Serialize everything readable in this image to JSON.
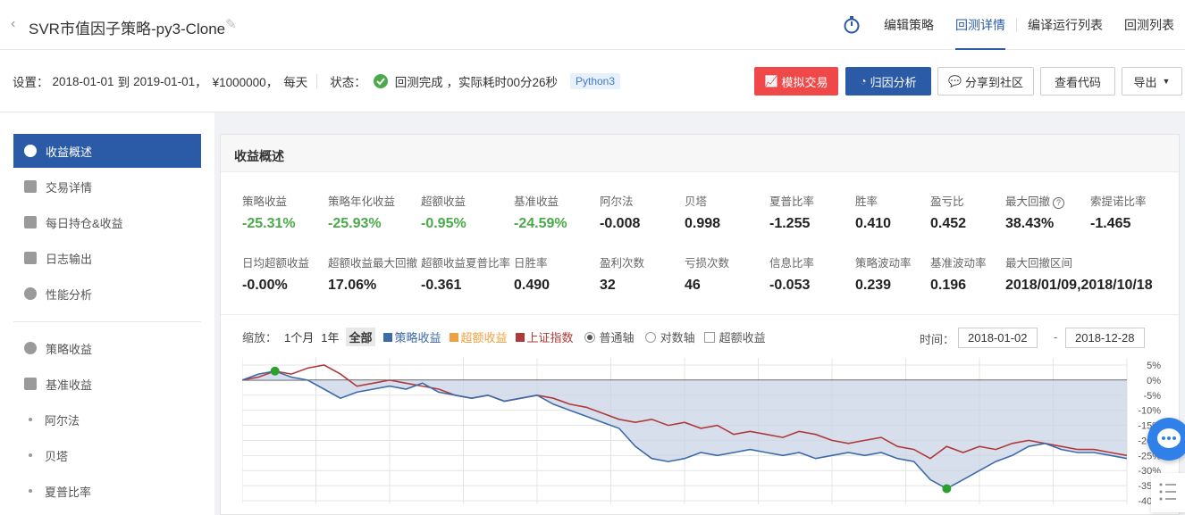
{
  "header": {
    "back_icon": "chevron-left-icon",
    "title": "SVR市值因子策略-py3-Clone",
    "nav": [
      "编辑策略",
      "回测详情",
      "编译运行列表",
      "回测列表"
    ],
    "active_nav": "回测详情"
  },
  "settings": {
    "prefix": "设置：",
    "start": "2018-01-01",
    "to": "到",
    "end": "2019-01-01",
    "capital": "¥1000000，",
    "freq": "每天",
    "status_label": "状态：",
    "status_text": "回测完成 ，实际耗时00分26秒",
    "lang": "Python3",
    "buttons": {
      "sim": "模拟交易",
      "attr": "归因分析",
      "share": "分享到社区",
      "code": "查看代码",
      "export": "导出"
    }
  },
  "sidebar": {
    "items": [
      "收益概述",
      "交易详情",
      "每日持仓&收益",
      "日志输出",
      "性能分析"
    ],
    "items2": [
      "策略收益",
      "基准收益"
    ],
    "sub": [
      "阿尔法",
      "贝塔",
      "夏普比率"
    ]
  },
  "panel": {
    "title": "收益概述",
    "row1": [
      {
        "label": "策略收益",
        "value": "-25.31%"
      },
      {
        "label": "策略年化收益",
        "value": "-25.93%"
      },
      {
        "label": "超额收益",
        "value": "-0.95%"
      },
      {
        "label": "基准收益",
        "value": "-24.59%"
      },
      {
        "label": "阿尔法",
        "value": "-0.008"
      },
      {
        "label": "贝塔",
        "value": "0.998"
      },
      {
        "label": "夏普比率",
        "value": "-1.255"
      },
      {
        "label": "胜率",
        "value": "0.410"
      },
      {
        "label": "盈亏比",
        "value": "0.452"
      },
      {
        "label": "最大回撤",
        "value": "38.43%"
      },
      {
        "label": "索提诺比率",
        "value": "-1.465"
      }
    ],
    "row2": [
      {
        "label": "日均超额收益",
        "value": "-0.00%"
      },
      {
        "label": "超额收益最大回撤",
        "value": "17.06%"
      },
      {
        "label": "超额收益夏普比率",
        "value": "-0.361"
      },
      {
        "label": "日胜率",
        "value": "0.490"
      },
      {
        "label": "盈利次数",
        "value": "32"
      },
      {
        "label": "亏损次数",
        "value": "46"
      },
      {
        "label": "信息比率",
        "value": "-0.053"
      },
      {
        "label": "策略波动率",
        "value": "0.239"
      },
      {
        "label": "基准波动率",
        "value": "0.196"
      },
      {
        "label": "最大回撤区间",
        "value": "2018/01/09,2018/10/18"
      }
    ],
    "controls": {
      "zoom_label": "缩放：",
      "zoom": [
        "1个月",
        "1年",
        "全部"
      ],
      "legend": [
        "策略收益",
        "超额收益",
        "上证指数"
      ],
      "axis_normal": "普通轴",
      "axis_log": "对数轴",
      "excess": "超额收益",
      "time_label": "时间：",
      "from": "2018-01-02",
      "dash": "-",
      "to": "2018-12-28"
    }
  },
  "colors": {
    "strategy": "#3d6aa8",
    "excess": "#f0a040",
    "benchmark": "#b03a3a",
    "accent": "#2b5aa6",
    "positive": "#4aaa4a"
  },
  "chart_data": {
    "type": "line",
    "y_ticks": [
      "5%",
      "0%",
      "-5%",
      "-10%",
      "-15%",
      "-20%",
      "-25%",
      "-30%",
      "-35%",
      "-40%"
    ],
    "ylim": [
      -40,
      5
    ],
    "grid": true,
    "series": [
      {
        "name": "策略收益",
        "values": [
          0,
          2,
          3,
          1,
          0,
          -3,
          -6,
          -4,
          -3,
          -2,
          -3,
          -1,
          -4,
          -5,
          -6,
          -5,
          -7,
          -6,
          -5,
          -8,
          -10,
          -12,
          -14,
          -16,
          -22,
          -26,
          -27,
          -26,
          -24,
          -25,
          -24,
          -23,
          -24,
          -25,
          -24,
          -26,
          -25,
          -24,
          -25,
          -24,
          -26,
          -27,
          -33,
          -36,
          -33,
          -30,
          -27,
          -25,
          -22,
          -21,
          -23,
          -24,
          -24,
          -25,
          -26
        ]
      },
      {
        "name": "上证指数",
        "values": [
          0,
          1,
          3,
          2,
          4,
          5,
          2,
          -2,
          -1,
          0,
          -1,
          -2,
          -3,
          -5,
          -6,
          -5,
          -7,
          -6,
          -5,
          -6,
          -8,
          -9,
          -11,
          -13,
          -14,
          -13,
          -15,
          -14,
          -16,
          -15,
          -18,
          -17,
          -18,
          -19,
          -17,
          -18,
          -20,
          -21,
          -20,
          -19,
          -22,
          -23,
          -26,
          -22,
          -24,
          -22,
          -23,
          -21,
          -20,
          -21,
          -22,
          -23,
          -23,
          -24,
          -25
        ]
      }
    ]
  }
}
